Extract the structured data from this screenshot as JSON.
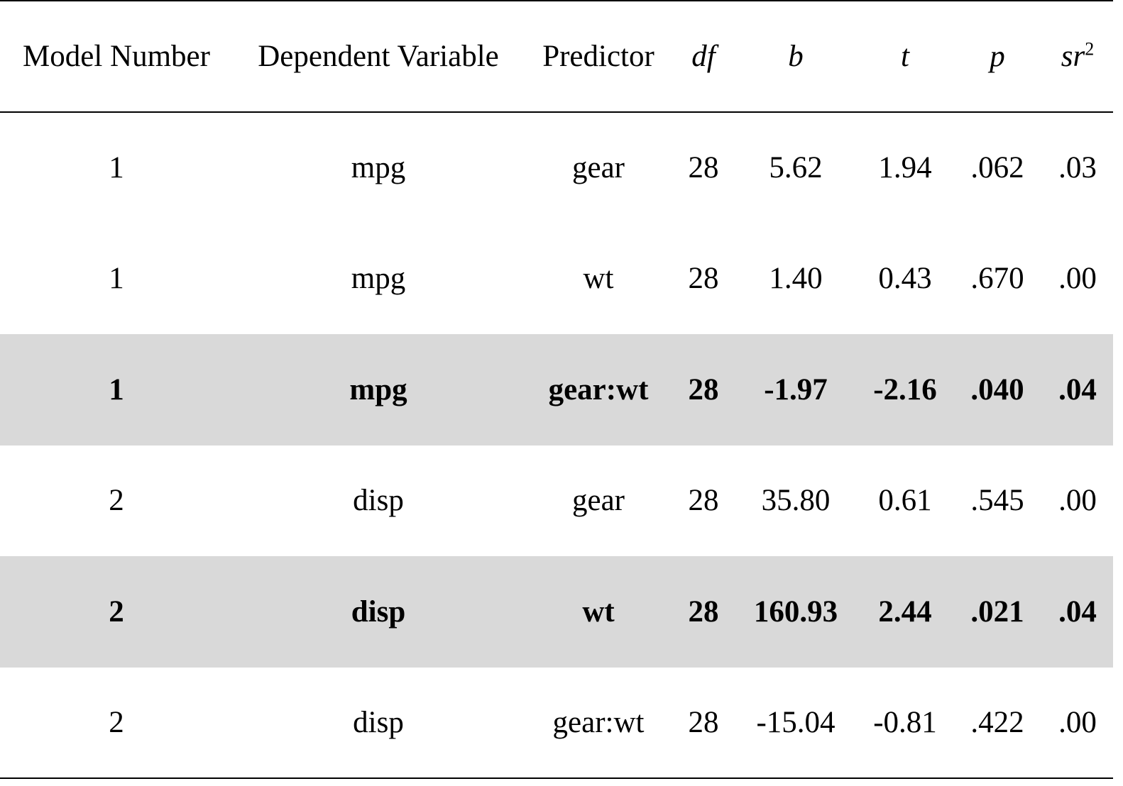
{
  "table": {
    "headers": {
      "model_number": "Model Number",
      "dependent_variable": "Dependent Variable",
      "predictor": "Predictor",
      "df": "df",
      "b": "b",
      "t": "t",
      "p": "p",
      "sr2_base": "sr",
      "sr2_exp": "2"
    },
    "rows": [
      {
        "model": "1",
        "dv": "mpg",
        "predictor": "gear",
        "df": "28",
        "b": "5.62",
        "t": "1.94",
        "p": ".062",
        "sr2": ".03",
        "highlight": false
      },
      {
        "model": "1",
        "dv": "mpg",
        "predictor": "wt",
        "df": "28",
        "b": "1.40",
        "t": "0.43",
        "p": ".670",
        "sr2": ".00",
        "highlight": false
      },
      {
        "model": "1",
        "dv": "mpg",
        "predictor": "gear:wt",
        "df": "28",
        "b": "-1.97",
        "t": "-2.16",
        "p": ".040",
        "sr2": ".04",
        "highlight": true
      },
      {
        "model": "2",
        "dv": "disp",
        "predictor": "gear",
        "df": "28",
        "b": "35.80",
        "t": "0.61",
        "p": ".545",
        "sr2": ".00",
        "highlight": false
      },
      {
        "model": "2",
        "dv": "disp",
        "predictor": "wt",
        "df": "28",
        "b": "160.93",
        "t": "2.44",
        "p": ".021",
        "sr2": ".04",
        "highlight": true
      },
      {
        "model": "2",
        "dv": "disp",
        "predictor": "gear:wt",
        "df": "28",
        "b": "-15.04",
        "t": "-0.81",
        "p": ".422",
        "sr2": ".00",
        "highlight": false
      }
    ],
    "colors": {
      "highlight_background": "#d9d9d9",
      "rule": "#000000"
    }
  }
}
